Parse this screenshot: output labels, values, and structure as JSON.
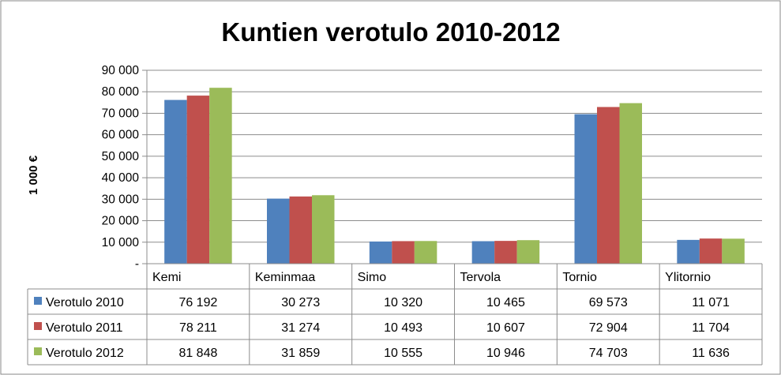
{
  "chart_data": {
    "type": "bar",
    "title": "Kuntien verotulo 2010-2012",
    "xlabel": "",
    "ylabel": "1 000 €",
    "ylim": [
      0,
      90000
    ],
    "yticks": [
      0,
      10000,
      20000,
      30000,
      40000,
      50000,
      60000,
      70000,
      80000,
      90000
    ],
    "ytick_labels": [
      "-",
      "10 000",
      "20 000",
      "30 000",
      "40 000",
      "50 000",
      "60 000",
      "70 000",
      "80 000",
      "90 000"
    ],
    "grid": true,
    "legend": "data-table-left",
    "categories": [
      "Kemi",
      "Keminmaa",
      "Simo",
      "Tervola",
      "Tornio",
      "Ylitornio"
    ],
    "series": [
      {
        "name": "Verotulo 2010",
        "color": "#4f81bd",
        "values": [
          76192,
          30273,
          10320,
          10465,
          69573,
          11071
        ],
        "labels": [
          "76 192",
          "30 273",
          "10 320",
          "10 465",
          "69 573",
          "11 071"
        ]
      },
      {
        "name": "Verotulo 2011",
        "color": "#c0504d",
        "values": [
          78211,
          31274,
          10493,
          10607,
          72904,
          11704
        ],
        "labels": [
          "78 211",
          "31 274",
          "10 493",
          "10 607",
          "72 904",
          "11 704"
        ]
      },
      {
        "name": "Verotulo 2012",
        "color": "#9bbb59",
        "values": [
          81848,
          31859,
          10555,
          10946,
          74703,
          11636
        ],
        "labels": [
          "81 848",
          "31 859",
          "10 555",
          "10 946",
          "74 703",
          "11 636"
        ]
      }
    ]
  }
}
